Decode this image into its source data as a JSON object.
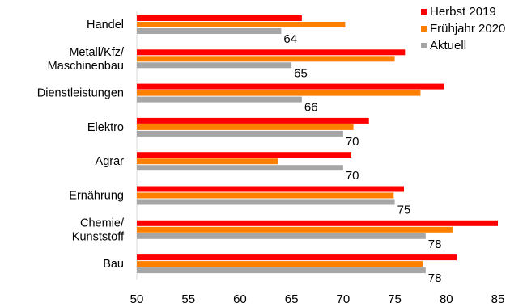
{
  "chart_data": {
    "type": "bar",
    "orientation": "horizontal",
    "categories": [
      [
        "Handel"
      ],
      [
        "Metall/Kfz/",
        "Maschinenbau"
      ],
      [
        "Dienstleistungen"
      ],
      [
        "Elektro"
      ],
      [
        "Agrar"
      ],
      [
        "Ernährung"
      ],
      [
        "Chemie/",
        "Kunststoff"
      ],
      [
        "Bau"
      ]
    ],
    "series": [
      {
        "name": "Herbst 2019",
        "color": "#ff0000",
        "values": [
          66,
          76,
          79.8,
          72.5,
          70.8,
          75.9,
          85,
          81
        ]
      },
      {
        "name": "Frühjahr 2020",
        "color": "#ff8000",
        "values": [
          70.2,
          75,
          77.5,
          71,
          63.7,
          74.9,
          80.6,
          77.7
        ]
      },
      {
        "name": "Aktuell",
        "color": "#a6a6a6",
        "values": [
          64,
          65,
          66,
          70,
          70,
          75,
          78,
          78
        ]
      }
    ],
    "data_labels": [
      "64",
      "65",
      "66",
      "70",
      "70",
      "75",
      "78",
      "78"
    ],
    "xlim": [
      50,
      85
    ],
    "xticks": [
      50,
      55,
      60,
      65,
      70,
      75,
      80,
      85
    ],
    "xtick_labels": [
      "50",
      "55",
      "60",
      "65",
      "70",
      "75",
      "80",
      "85"
    ],
    "grid": false,
    "legend_position": "top-right",
    "title": "",
    "xlabel": "",
    "ylabel": ""
  }
}
